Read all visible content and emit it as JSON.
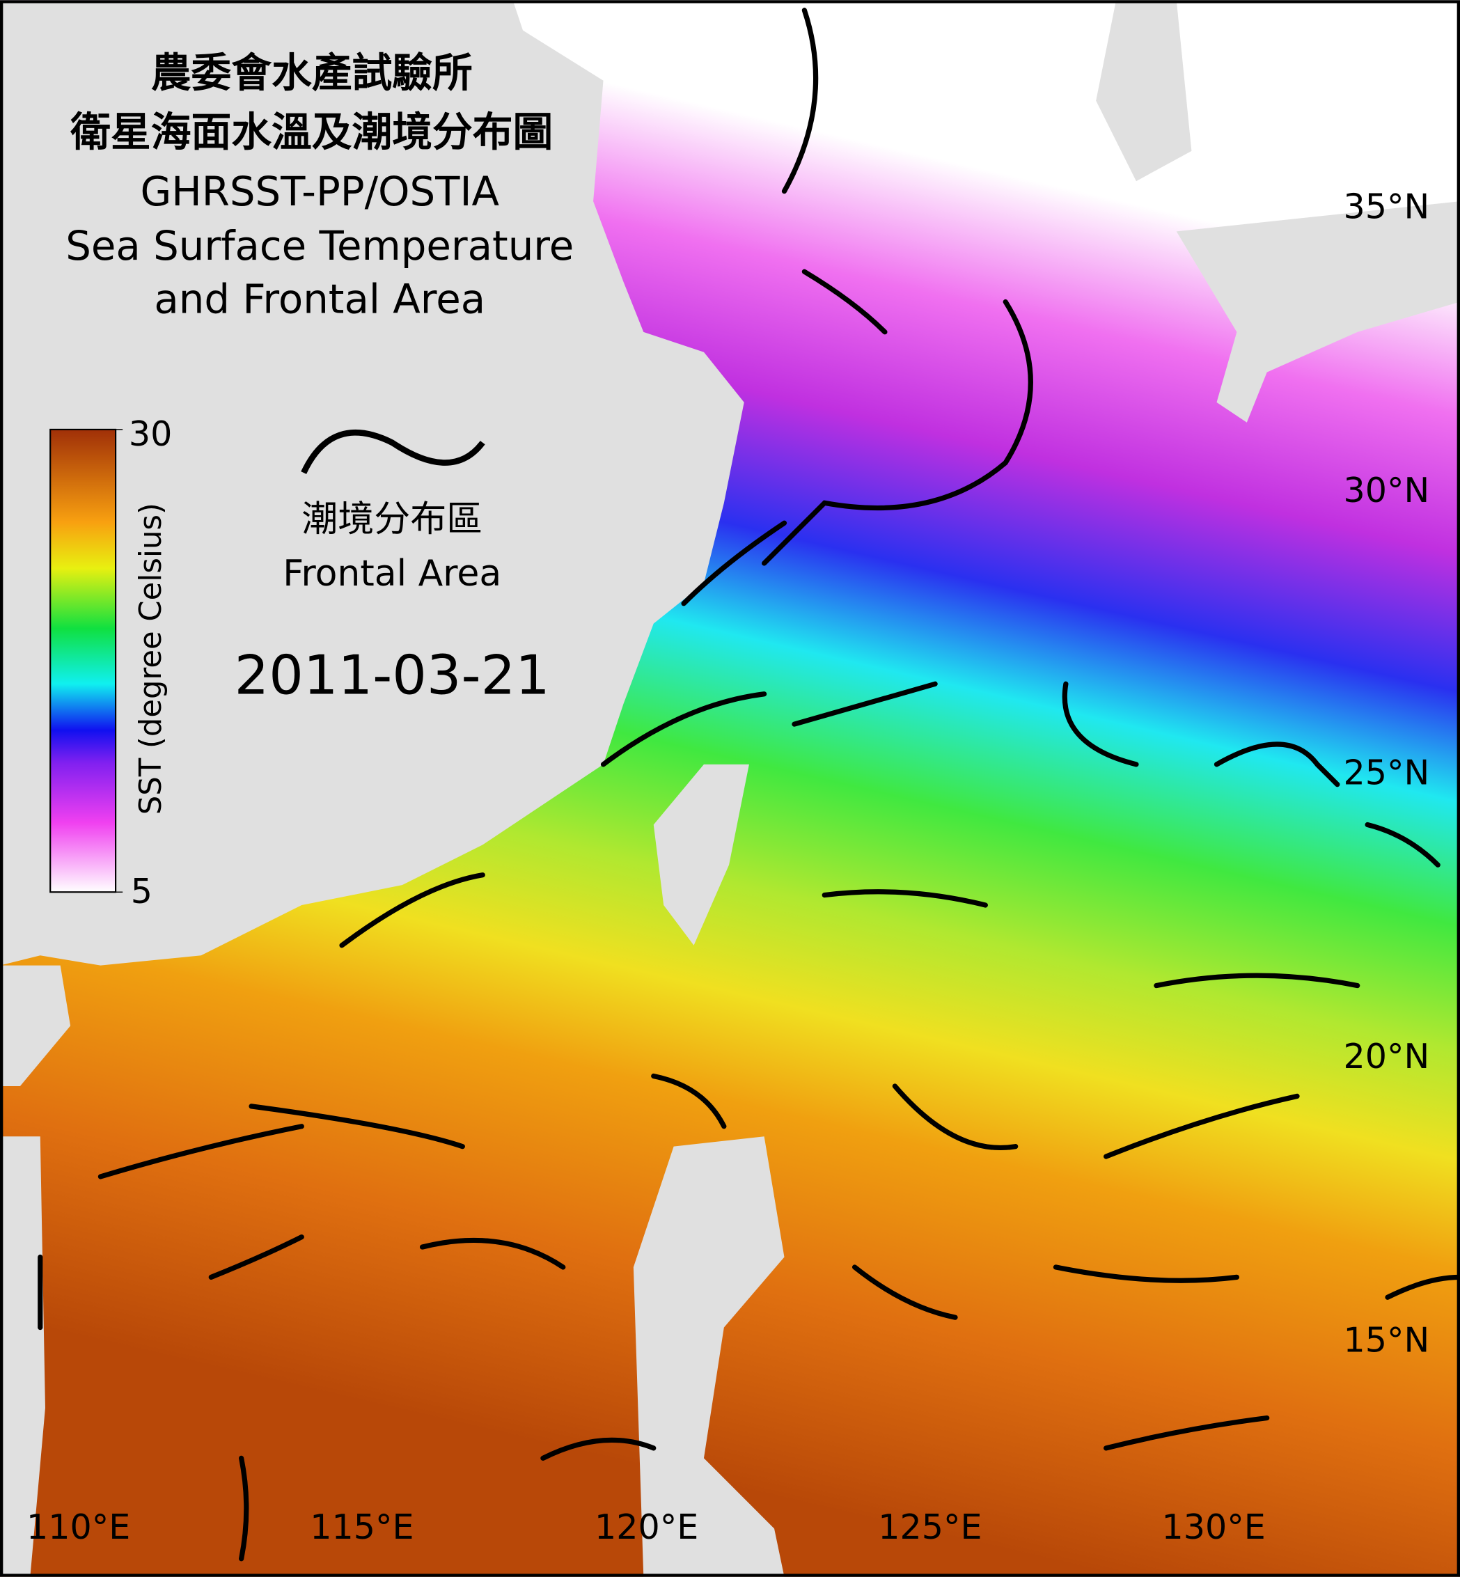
{
  "title": {
    "zh_lines": [
      "農委會水產試驗所",
      "衛星海面水溫及潮境分布圖"
    ],
    "en_lines": [
      "GHRSST-PP/OSTIA",
      "Sea Surface Temperature",
      "and Frontal Area"
    ]
  },
  "colorbar": {
    "label": "SST (degree Celsius)",
    "min": 5,
    "max": 30
  },
  "legend": {
    "zh": "潮境分布區",
    "en": "Frontal Area"
  },
  "date": "2011-03-21",
  "lat_labels": [
    "35°N",
    "30°N",
    "25°N",
    "20°N",
    "15°N"
  ],
  "lon_labels": [
    "110°E",
    "115°E",
    "120°E",
    "125°E",
    "130°E"
  ]
}
